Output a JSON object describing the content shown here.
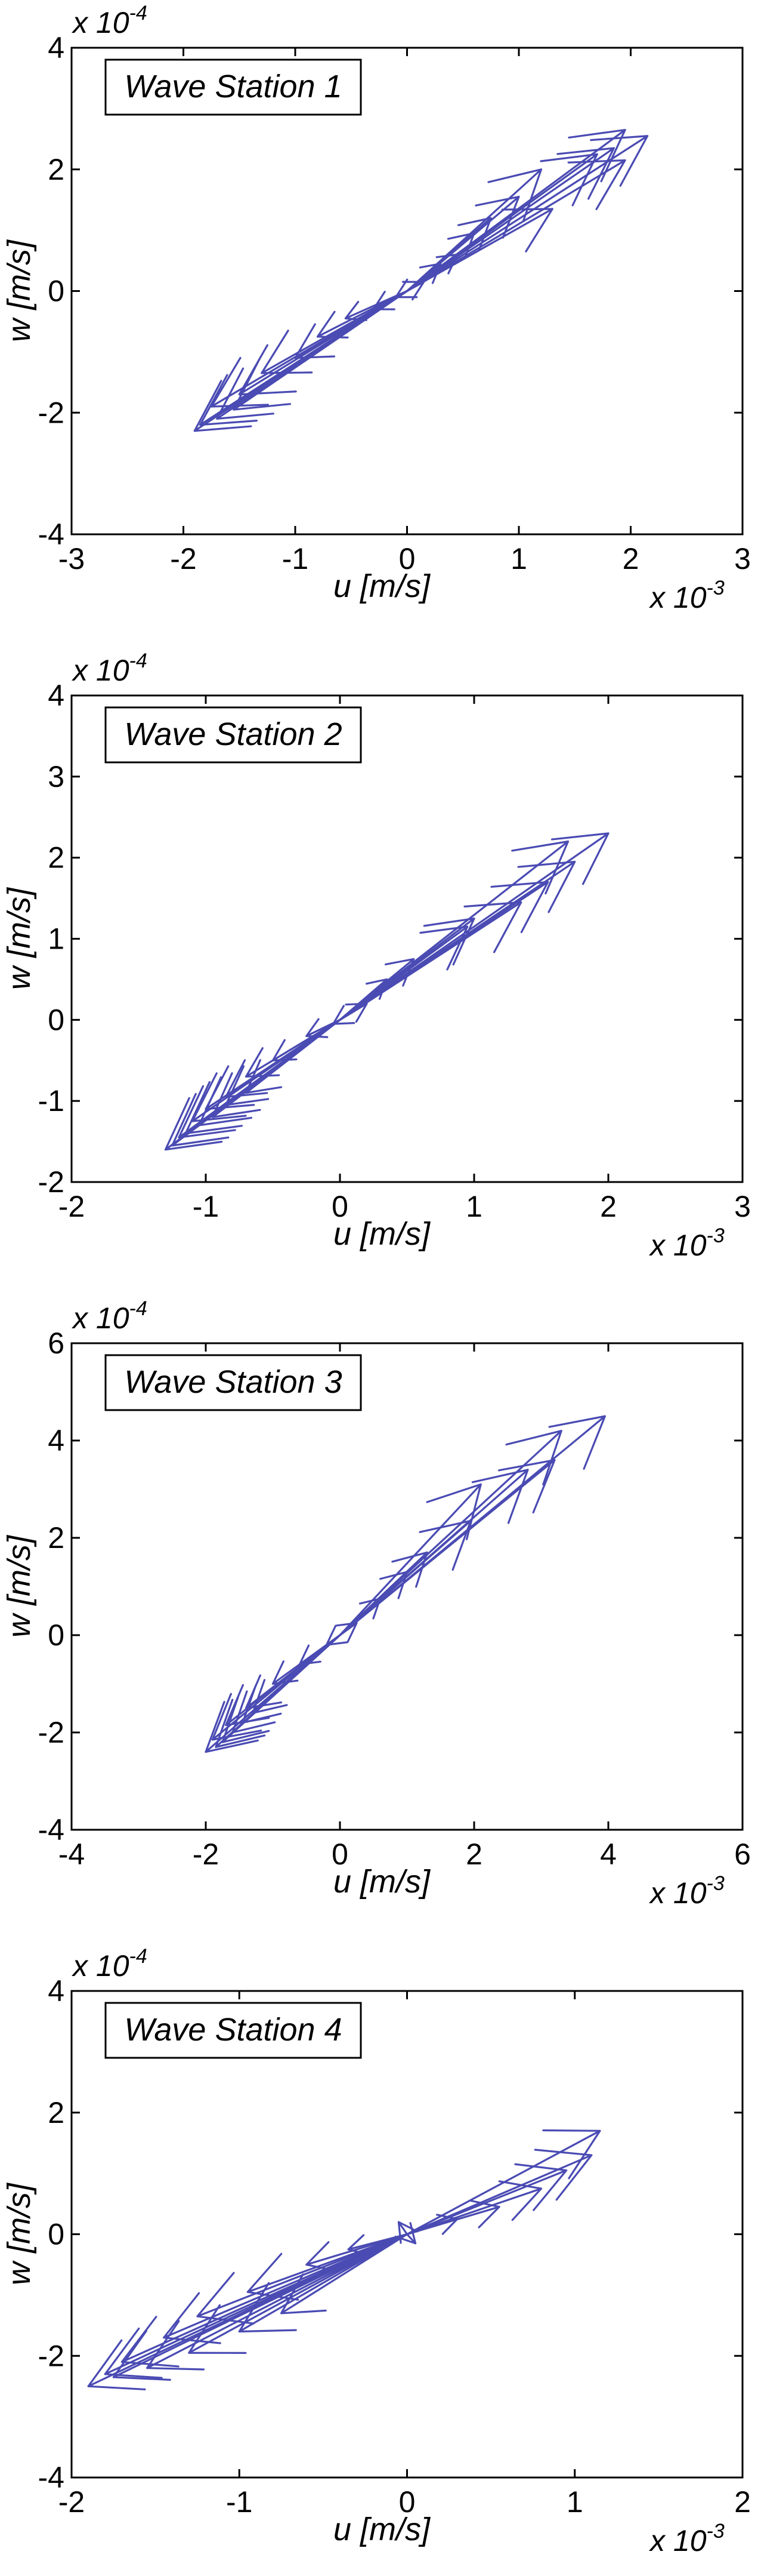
{
  "chart_data": [
    {
      "type": "quiver",
      "legend": "Wave Station 1",
      "xlabel": "u [m/s]",
      "ylabel": "w [m/s]",
      "x_exponent_base": "x 10",
      "x_exponent_power": "-3",
      "y_exponent_base": "x 10",
      "y_exponent_power": "-4",
      "xlim": [
        -3,
        3
      ],
      "ylim": [
        -4,
        4
      ],
      "xticks": [
        -3,
        -2,
        -1,
        0,
        1,
        2,
        3
      ],
      "yticks": [
        -4,
        -2,
        0,
        2,
        4
      ],
      "arrow_color": "#4a4bb3",
      "vectors": [
        [
          2.15,
          2.55
        ],
        [
          1.95,
          2.65
        ],
        [
          1.85,
          2.35
        ],
        [
          1.7,
          2.25
        ],
        [
          1.95,
          2.15
        ],
        [
          1.2,
          2.0
        ],
        [
          1.0,
          1.55
        ],
        [
          1.3,
          1.35
        ],
        [
          0.75,
          1.2
        ],
        [
          0.6,
          0.95
        ],
        [
          0.45,
          0.6
        ],
        [
          0.3,
          0.45
        ],
        [
          0.15,
          0.15
        ],
        [
          -0.1,
          -0.1
        ],
        [
          -0.3,
          -0.3
        ],
        [
          -0.55,
          -0.45
        ],
        [
          -0.8,
          -0.75
        ],
        [
          -1.0,
          -1.1
        ],
        [
          -1.3,
          -1.35
        ],
        [
          -1.5,
          -1.7
        ],
        [
          -1.75,
          -1.9
        ],
        [
          -1.85,
          -2.2
        ],
        [
          -1.9,
          -2.3
        ],
        [
          -1.7,
          -2.1
        ],
        [
          -1.55,
          -1.95
        ]
      ]
    },
    {
      "type": "quiver",
      "legend": "Wave Station 2",
      "xlabel": "u [m/s]",
      "ylabel": "w [m/s]",
      "x_exponent_base": "x 10",
      "x_exponent_power": "-3",
      "y_exponent_base": "x 10",
      "y_exponent_power": "-4",
      "xlim": [
        -2,
        3
      ],
      "ylim": [
        -2,
        4
      ],
      "xticks": [
        -2,
        -1,
        0,
        1,
        2,
        3
      ],
      "yticks": [
        -2,
        -1,
        0,
        1,
        2,
        3,
        4
      ],
      "arrow_color": "#4a4bb3",
      "vectors": [
        [
          2.0,
          2.3
        ],
        [
          1.7,
          2.2
        ],
        [
          1.75,
          1.95
        ],
        [
          1.55,
          1.7
        ],
        [
          1.35,
          1.45
        ],
        [
          1.0,
          1.25
        ],
        [
          0.95,
          1.15
        ],
        [
          0.55,
          0.75
        ],
        [
          0.35,
          0.5
        ],
        [
          0.2,
          0.2
        ],
        [
          -0.05,
          -0.05
        ],
        [
          -0.25,
          -0.2
        ],
        [
          -0.5,
          -0.5
        ],
        [
          -0.7,
          -0.7
        ],
        [
          -0.85,
          -0.95
        ],
        [
          -1.0,
          -1.1
        ],
        [
          -1.1,
          -1.25
        ],
        [
          -1.2,
          -1.45
        ],
        [
          -1.3,
          -1.6
        ],
        [
          -1.25,
          -1.55
        ],
        [
          -1.15,
          -1.4
        ],
        [
          -1.05,
          -1.3
        ],
        [
          -0.95,
          -1.2
        ],
        [
          -0.85,
          -1.05
        ],
        [
          -0.7,
          -0.9
        ]
      ]
    },
    {
      "type": "quiver",
      "legend": "Wave Station 3",
      "xlabel": "u [m/s]",
      "ylabel": "w [m/s]",
      "x_exponent_base": "x 10",
      "x_exponent_power": "-3",
      "y_exponent_base": "x 10",
      "y_exponent_power": "-4",
      "xlim": [
        -4,
        6
      ],
      "ylim": [
        -4,
        6
      ],
      "xticks": [
        -4,
        -2,
        0,
        2,
        4,
        6
      ],
      "yticks": [
        -4,
        -2,
        0,
        2,
        4,
        6
      ],
      "arrow_color": "#4a4bb3",
      "vectors": [
        [
          3.95,
          4.5
        ],
        [
          3.3,
          4.2
        ],
        [
          3.2,
          3.6
        ],
        [
          2.8,
          3.4
        ],
        [
          2.1,
          3.1
        ],
        [
          1.95,
          2.35
        ],
        [
          1.3,
          1.7
        ],
        [
          1.0,
          1.3
        ],
        [
          0.6,
          0.75
        ],
        [
          0.25,
          0.25
        ],
        [
          -0.2,
          -0.2
        ],
        [
          -0.6,
          -0.6
        ],
        [
          -1.0,
          -1.0
        ],
        [
          -1.4,
          -1.5
        ],
        [
          -1.7,
          -1.85
        ],
        [
          -1.9,
          -2.15
        ],
        [
          -2.0,
          -2.4
        ],
        [
          -1.85,
          -2.3
        ],
        [
          -1.75,
          -2.2
        ],
        [
          -1.6,
          -2.0
        ],
        [
          -1.45,
          -1.8
        ],
        [
          -1.3,
          -1.6
        ]
      ]
    },
    {
      "type": "quiver",
      "legend": "Wave Station 4",
      "xlabel": "u [m/s]",
      "ylabel": "w [m/s]",
      "x_exponent_base": "x 10",
      "x_exponent_power": "-3",
      "y_exponent_base": "x 10",
      "y_exponent_power": "-4",
      "xlim": [
        -2,
        2
      ],
      "ylim": [
        -4,
        4
      ],
      "xticks": [
        -2,
        -1,
        0,
        1,
        2
      ],
      "yticks": [
        -4,
        -2,
        0,
        2,
        4
      ],
      "arrow_color": "#4a4bb3",
      "vectors": [
        [
          1.15,
          1.7
        ],
        [
          1.1,
          1.3
        ],
        [
          0.95,
          1.05
        ],
        [
          0.8,
          0.75
        ],
        [
          0.55,
          0.45
        ],
        [
          0.3,
          0.25
        ],
        [
          0.05,
          -0.15
        ],
        [
          -0.05,
          0.2
        ],
        [
          -0.35,
          -0.25
        ],
        [
          -0.6,
          -0.5
        ],
        [
          -0.95,
          -0.95
        ],
        [
          -1.25,
          -1.35
        ],
        [
          -1.45,
          -1.7
        ],
        [
          -1.7,
          -2.1
        ],
        [
          -1.8,
          -2.3
        ],
        [
          -1.9,
          -2.5
        ],
        [
          -1.75,
          -2.35
        ],
        [
          -1.55,
          -2.2
        ],
        [
          -1.3,
          -1.95
        ],
        [
          -1.0,
          -1.6
        ],
        [
          -0.75,
          -1.3
        ]
      ]
    }
  ]
}
